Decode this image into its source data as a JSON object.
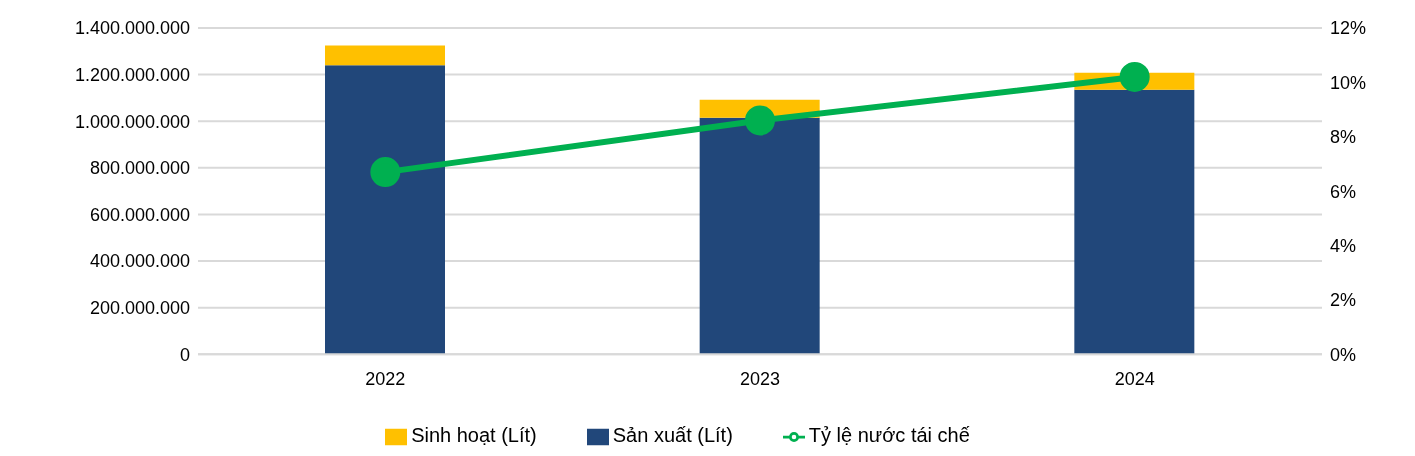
{
  "chart_data": {
    "type": "bar",
    "categories": [
      "2022",
      "2023",
      "2024"
    ],
    "stacked": true,
    "series": [
      {
        "name": "Sản xuất (Lít)",
        "color": "#21477a",
        "values": [
          1240000000,
          1015000000,
          1135000000
        ]
      },
      {
        "name": "Sinh hoạt (Lít)",
        "color": "#ffc000",
        "values": [
          85000000,
          77000000,
          73000000
        ]
      },
      {
        "name": "Tỷ lệ nước tái chế",
        "color": "#00b050",
        "type": "line",
        "axis": "y2",
        "values": [
          6.7,
          8.6,
          10.2
        ]
      }
    ],
    "ylim": [
      0,
      1400000000
    ],
    "yticks": [
      {
        "value": 0,
        "label": "0"
      },
      {
        "value": 200000000,
        "label": "200.000.000"
      },
      {
        "value": 400000000,
        "label": "400.000.000"
      },
      {
        "value": 600000000,
        "label": "600.000.000"
      },
      {
        "value": 800000000,
        "label": "800.000.000"
      },
      {
        "value": 1000000000,
        "label": "1.000.000.000"
      },
      {
        "value": 1200000000,
        "label": "1.200.000.000"
      },
      {
        "value": 1400000000,
        "label": "1.400.000.000"
      }
    ],
    "y2lim": [
      0,
      12
    ],
    "y2ticks": [
      {
        "value": 0,
        "label": "0%"
      },
      {
        "value": 2,
        "label": "2%"
      },
      {
        "value": 4,
        "label": "4%"
      },
      {
        "value": 6,
        "label": "6%"
      },
      {
        "value": 8,
        "label": "8%"
      },
      {
        "value": 10,
        "label": "10%"
      },
      {
        "value": 12,
        "label": "12%"
      }
    ],
    "grid": "y",
    "legend": "bottom",
    "marker": "circle",
    "line_style": "solid"
  }
}
